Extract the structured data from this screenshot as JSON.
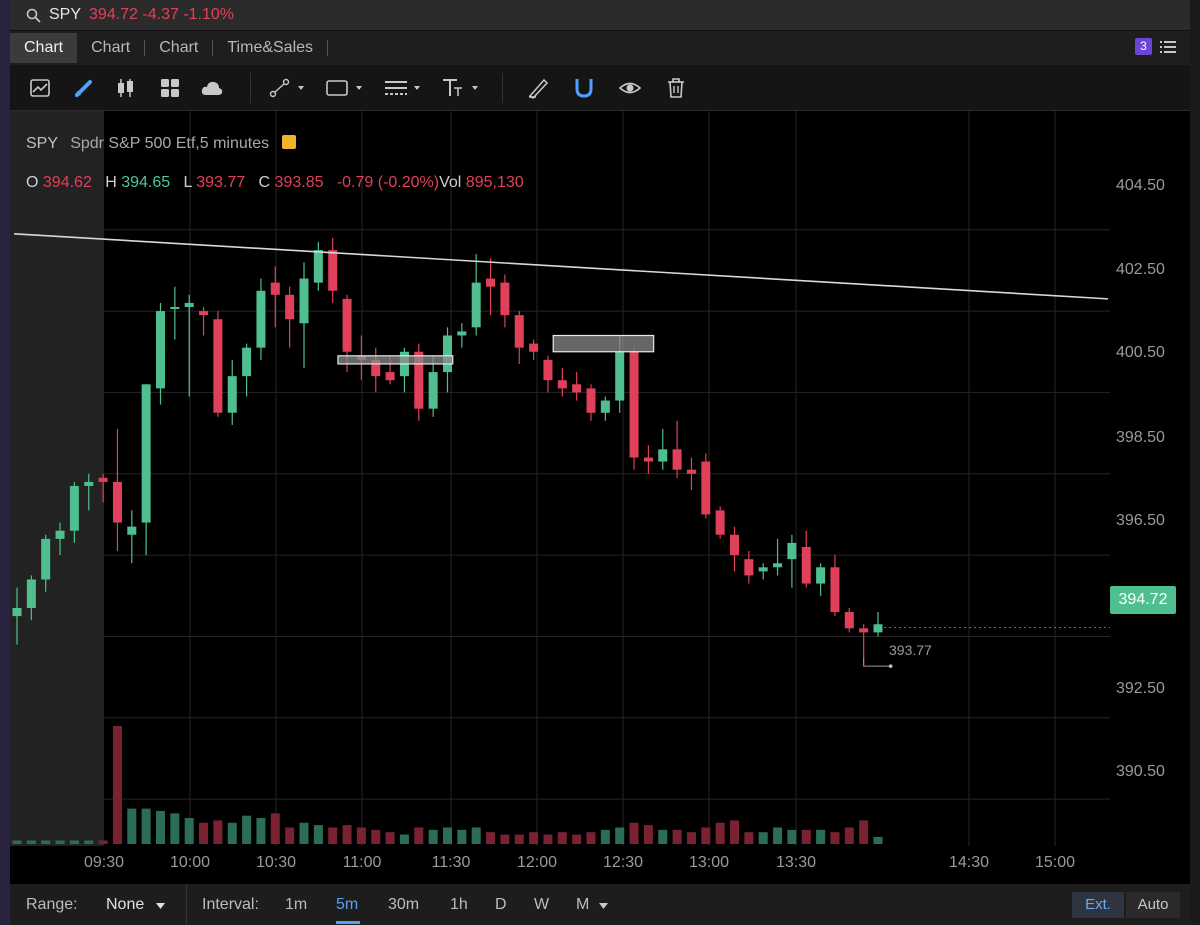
{
  "symbol_bar": {
    "symbol": "SPY",
    "quote": "394.72 -4.37 -1.10%"
  },
  "tabs": [
    {
      "label": "Chart",
      "active": true
    },
    {
      "label": "Chart",
      "active": false
    },
    {
      "label": "Chart",
      "active": false
    },
    {
      "label": "Time&Sales",
      "active": false
    }
  ],
  "tab_badge": "3",
  "toolbar": {
    "icons": [
      "line-chart-icon",
      "pencil-icon",
      "candlestick-icon",
      "grid-icon",
      "cloud-icon",
      "trendline-tool-icon",
      "rectangle-tool-icon",
      "line-style-icon",
      "text-tool-icon",
      "brush-icon",
      "magnet-icon",
      "eye-icon",
      "trash-icon"
    ]
  },
  "legend": {
    "symbol": "SPY",
    "description": "Spdr S&P 500 Etf,5 minutes",
    "o_label": "O",
    "o_value": "394.62",
    "h_label": "H",
    "h_value": "394.65",
    "l_label": "L",
    "l_value": "393.77",
    "c_label": "C",
    "c_value": "393.85",
    "change": "-0.79 (-0.20%)",
    "vol_label": "Vol",
    "vol_value": "895,130"
  },
  "price_axis": [
    "404.50",
    "402.50",
    "400.50",
    "398.50",
    "396.50",
    "392.50",
    "390.50"
  ],
  "time_axis": [
    "09:30",
    "10:00",
    "10:30",
    "11:00",
    "11:30",
    "12:00",
    "12:30",
    "13:00",
    "13:30",
    "14:30",
    "15:00"
  ],
  "last_price_label": "394.72",
  "low_marker_label": "393.77",
  "colors": {
    "up": "#4fbf8f",
    "down": "#e0405a",
    "grid": "#262626",
    "premarket": "#222222"
  },
  "chart_data": {
    "type": "candlestick",
    "interval": "5 minutes",
    "y_range": [
      389.2,
      405.6
    ],
    "candles": [
      {
        "o": 395.0,
        "h": 395.7,
        "l": 394.3,
        "c": 395.2
      },
      {
        "o": 395.2,
        "h": 396.0,
        "l": 394.9,
        "c": 395.9
      },
      {
        "o": 395.9,
        "h": 397.0,
        "l": 395.6,
        "c": 396.9
      },
      {
        "o": 396.9,
        "h": 397.3,
        "l": 396.5,
        "c": 397.1
      },
      {
        "o": 397.1,
        "h": 398.3,
        "l": 396.8,
        "c": 398.2
      },
      {
        "o": 398.2,
        "h": 398.5,
        "l": 397.6,
        "c": 398.3
      },
      {
        "o": 398.4,
        "h": 398.5,
        "l": 397.8,
        "c": 398.3
      },
      {
        "o": 398.3,
        "h": 399.6,
        "l": 396.6,
        "c": 397.3
      },
      {
        "o": 397.0,
        "h": 397.6,
        "l": 396.3,
        "c": 397.2
      },
      {
        "o": 397.3,
        "h": 400.7,
        "l": 396.5,
        "c": 400.7
      },
      {
        "o": 400.6,
        "h": 402.7,
        "l": 400.2,
        "c": 402.5
      },
      {
        "o": 402.6,
        "h": 403.1,
        "l": 401.8,
        "c": 402.6
      },
      {
        "o": 402.6,
        "h": 402.9,
        "l": 400.4,
        "c": 402.7
      },
      {
        "o": 402.5,
        "h": 402.6,
        "l": 401.9,
        "c": 402.4
      },
      {
        "o": 402.3,
        "h": 402.5,
        "l": 399.9,
        "c": 400.0
      },
      {
        "o": 400.0,
        "h": 401.3,
        "l": 399.7,
        "c": 400.9
      },
      {
        "o": 400.9,
        "h": 401.7,
        "l": 400.4,
        "c": 401.6
      },
      {
        "o": 401.6,
        "h": 403.3,
        "l": 401.3,
        "c": 403.0
      },
      {
        "o": 403.2,
        "h": 403.6,
        "l": 402.1,
        "c": 402.9
      },
      {
        "o": 402.9,
        "h": 403.1,
        "l": 401.6,
        "c": 402.3
      },
      {
        "o": 402.2,
        "h": 403.7,
        "l": 401.1,
        "c": 403.3
      },
      {
        "o": 403.2,
        "h": 404.2,
        "l": 403.0,
        "c": 404.0
      },
      {
        "o": 404.0,
        "h": 404.3,
        "l": 402.7,
        "c": 403.0
      },
      {
        "o": 402.8,
        "h": 402.9,
        "l": 401.0,
        "c": 401.5
      },
      {
        "o": 401.4,
        "h": 401.9,
        "l": 400.8,
        "c": 401.3
      },
      {
        "o": 401.3,
        "h": 401.6,
        "l": 400.5,
        "c": 400.9
      },
      {
        "o": 401.0,
        "h": 401.4,
        "l": 400.7,
        "c": 400.8
      },
      {
        "o": 400.9,
        "h": 401.6,
        "l": 400.5,
        "c": 401.5
      },
      {
        "o": 401.5,
        "h": 401.7,
        "l": 399.8,
        "c": 400.1
      },
      {
        "o": 400.1,
        "h": 401.4,
        "l": 399.9,
        "c": 401.0
      },
      {
        "o": 401.0,
        "h": 402.1,
        "l": 400.5,
        "c": 401.9
      },
      {
        "o": 401.9,
        "h": 402.2,
        "l": 401.6,
        "c": 402.0
      },
      {
        "o": 402.1,
        "h": 403.9,
        "l": 401.9,
        "c": 403.2
      },
      {
        "o": 403.3,
        "h": 403.8,
        "l": 402.4,
        "c": 403.1
      },
      {
        "o": 403.2,
        "h": 403.4,
        "l": 402.1,
        "c": 402.4
      },
      {
        "o": 402.4,
        "h": 402.5,
        "l": 401.2,
        "c": 401.6
      },
      {
        "o": 401.7,
        "h": 401.8,
        "l": 401.3,
        "c": 401.5
      },
      {
        "o": 401.3,
        "h": 401.4,
        "l": 400.5,
        "c": 400.8
      },
      {
        "o": 400.8,
        "h": 401.1,
        "l": 400.4,
        "c": 400.6
      },
      {
        "o": 400.7,
        "h": 401.0,
        "l": 400.3,
        "c": 400.5
      },
      {
        "o": 400.6,
        "h": 400.7,
        "l": 399.8,
        "c": 400.0
      },
      {
        "o": 400.0,
        "h": 400.4,
        "l": 399.8,
        "c": 400.3
      },
      {
        "o": 400.3,
        "h": 401.9,
        "l": 400.0,
        "c": 401.5
      },
      {
        "o": 401.5,
        "h": 401.6,
        "l": 398.6,
        "c": 398.9
      },
      {
        "o": 398.9,
        "h": 399.2,
        "l": 398.5,
        "c": 398.8
      },
      {
        "o": 398.8,
        "h": 399.6,
        "l": 398.6,
        "c": 399.1
      },
      {
        "o": 399.1,
        "h": 399.8,
        "l": 398.4,
        "c": 398.6
      },
      {
        "o": 398.6,
        "h": 398.9,
        "l": 398.1,
        "c": 398.5
      },
      {
        "o": 398.8,
        "h": 399.0,
        "l": 397.4,
        "c": 397.5
      },
      {
        "o": 397.6,
        "h": 397.7,
        "l": 396.9,
        "c": 397.0
      },
      {
        "o": 397.0,
        "h": 397.2,
        "l": 396.1,
        "c": 396.5
      },
      {
        "o": 396.4,
        "h": 396.6,
        "l": 395.8,
        "c": 396.0
      },
      {
        "o": 396.1,
        "h": 396.3,
        "l": 395.9,
        "c": 396.2
      },
      {
        "o": 396.2,
        "h": 396.9,
        "l": 396.0,
        "c": 396.3
      },
      {
        "o": 396.4,
        "h": 397.0,
        "l": 395.7,
        "c": 396.8
      },
      {
        "o": 396.7,
        "h": 397.1,
        "l": 395.7,
        "c": 395.8
      },
      {
        "o": 395.8,
        "h": 396.3,
        "l": 395.5,
        "c": 396.2
      },
      {
        "o": 396.2,
        "h": 396.5,
        "l": 395.0,
        "c": 395.1
      },
      {
        "o": 395.1,
        "h": 395.2,
        "l": 394.6,
        "c": 394.7
      },
      {
        "o": 394.7,
        "h": 394.8,
        "l": 393.8,
        "c": 394.6
      },
      {
        "o": 394.6,
        "h": 395.1,
        "l": 394.5,
        "c": 394.8
      }
    ],
    "volumes": [
      3,
      3,
      3,
      3,
      3,
      3,
      3,
      100,
      30,
      30,
      28,
      26,
      22,
      18,
      20,
      18,
      24,
      22,
      26,
      14,
      18,
      16,
      14,
      16,
      14,
      12,
      10,
      8,
      14,
      12,
      14,
      12,
      14,
      10,
      8,
      8,
      10,
      8,
      10,
      8,
      10,
      12,
      14,
      18,
      16,
      12,
      12,
      10,
      14,
      18,
      20,
      10,
      10,
      14,
      12,
      12,
      12,
      10,
      14,
      20,
      6
    ],
    "annotations": [
      {
        "type": "trendline",
        "from": {
          "x": "09:10",
          "y": 404.4
        },
        "to": {
          "x": "15:20",
          "y": 402.8
        }
      },
      {
        "type": "rectangle",
        "y_top": 401.4,
        "y_bottom": 401.2,
        "x_from": "10:55",
        "x_to": "11:35"
      },
      {
        "type": "rectangle",
        "y_top": 401.9,
        "y_bottom": 401.5,
        "x_from": "12:10",
        "x_to": "12:45"
      }
    ]
  },
  "bottom_bar": {
    "range_label": "Range:",
    "range_value": "None",
    "interval_label": "Interval:",
    "intervals": [
      "1m",
      "5m",
      "30m",
      "1h",
      "D",
      "W",
      "M"
    ],
    "selected_interval": "5m",
    "ext_label": "Ext.",
    "auto_label": "Auto"
  }
}
